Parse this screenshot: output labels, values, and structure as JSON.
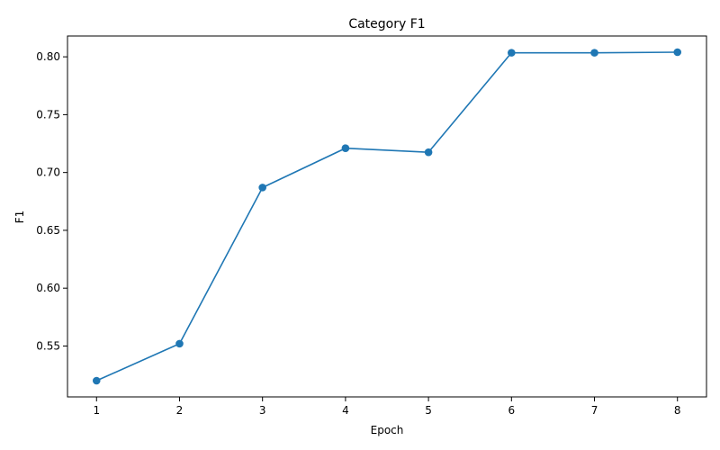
{
  "chart_data": {
    "type": "line",
    "title": "Category F1",
    "xlabel": "Epoch",
    "ylabel": "F1",
    "x": [
      1,
      2,
      3,
      4,
      5,
      6,
      7,
      8
    ],
    "xticks": [
      "1",
      "2",
      "3",
      "4",
      "5",
      "6",
      "7",
      "8"
    ],
    "yticks": [
      "0.55",
      "0.60",
      "0.65",
      "0.70",
      "0.75",
      "0.80"
    ],
    "ytick_values": [
      0.55,
      0.6,
      0.65,
      0.7,
      0.75,
      0.8
    ],
    "xlim": [
      0.65,
      8.35
    ],
    "ylim": [
      0.506,
      0.818
    ],
    "series": [
      {
        "values": [
          0.52,
          0.552,
          0.687,
          0.721,
          0.7175,
          0.8035,
          0.8035,
          0.804
        ],
        "color": "#1f77b4",
        "marker": "circle"
      }
    ],
    "grid": false,
    "legend": "none"
  }
}
